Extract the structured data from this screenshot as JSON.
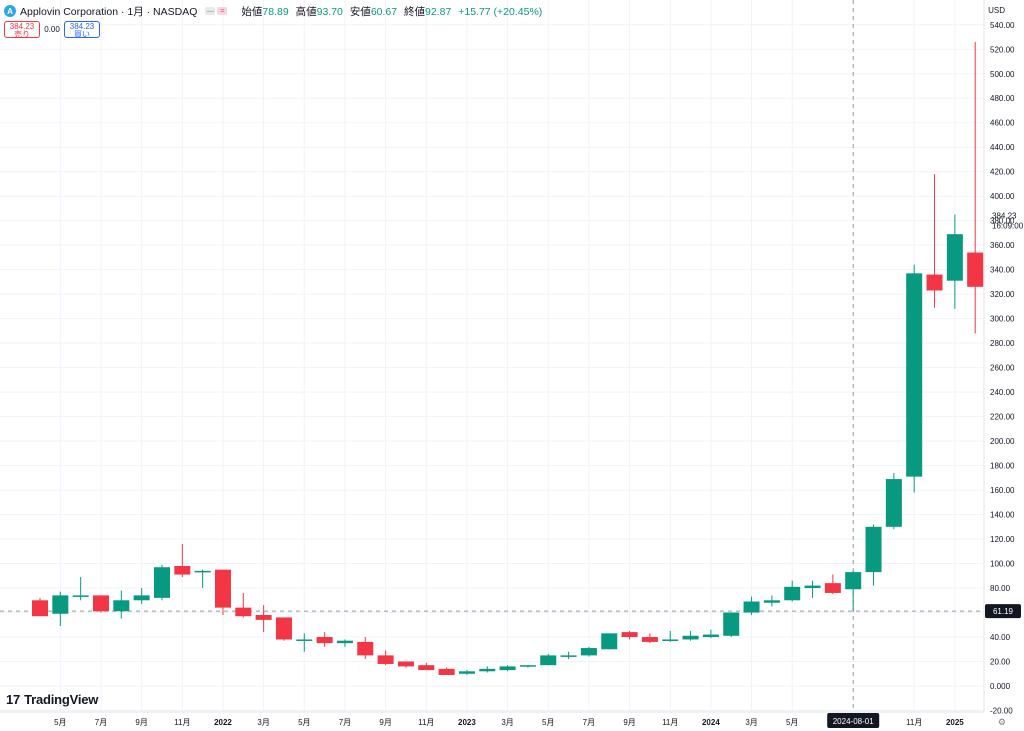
{
  "header": {
    "logo_letter": "A",
    "symbol_title": "Applovin Corporation · 1月 · NASDAQ",
    "ohlc": {
      "open_label": "始値",
      "open": "78.89",
      "high_label": "高値",
      "high": "93.70",
      "low_label": "安値",
      "low": "60.67",
      "close_label": "終値",
      "close": "92.87",
      "change": "+15.77 (+20.45%)"
    }
  },
  "trade": {
    "sell_price": "384.23",
    "sell_label": "売り",
    "spread": "0.00",
    "buy_price": "384.23",
    "buy_label": "買い"
  },
  "currency": "USD",
  "brand": "TradingView",
  "brand_mark": "17",
  "settings_icon": "gear-icon",
  "colors": {
    "up": "#089981",
    "down": "#f23645",
    "grid": "#f0f3fa",
    "axis_text": "#131722",
    "price_tag": "#131722"
  },
  "chart_data": {
    "type": "candlestick",
    "ylim": [
      -20,
      550
    ],
    "y_ticks": [
      -20,
      0,
      20,
      40,
      60,
      80,
      100,
      120,
      140,
      160,
      180,
      200,
      220,
      240,
      260,
      280,
      300,
      320,
      340,
      360,
      380,
      400,
      420,
      440,
      460,
      480,
      500,
      520,
      540
    ],
    "y_tick_labels": [
      "-20.00",
      "0.000",
      "20.00",
      "40.00",
      "60.00",
      "80.00",
      "100.00",
      "120.00",
      "140.00",
      "160.00",
      "180.00",
      "200.00",
      "220.00",
      "240.00",
      "260.00",
      "280.00",
      "300.00",
      "320.00",
      "340.00",
      "360.00",
      "380.00",
      "400.00",
      "420.00",
      "440.00",
      "460.00",
      "480.00",
      "500.00",
      "520.00",
      "540.00"
    ],
    "x_labels": [
      {
        "i": 1,
        "label": "5月"
      },
      {
        "i": 3,
        "label": "7月"
      },
      {
        "i": 5,
        "label": "9月"
      },
      {
        "i": 7,
        "label": "11月"
      },
      {
        "i": 9,
        "label": "2022",
        "bold": true
      },
      {
        "i": 11,
        "label": "3月"
      },
      {
        "i": 13,
        "label": "5月"
      },
      {
        "i": 15,
        "label": "7月"
      },
      {
        "i": 17,
        "label": "9月"
      },
      {
        "i": 19,
        "label": "11月"
      },
      {
        "i": 21,
        "label": "2023",
        "bold": true
      },
      {
        "i": 23,
        "label": "3月"
      },
      {
        "i": 25,
        "label": "5月"
      },
      {
        "i": 27,
        "label": "7月"
      },
      {
        "i": 29,
        "label": "9月"
      },
      {
        "i": 31,
        "label": "11月"
      },
      {
        "i": 33,
        "label": "2024",
        "bold": true
      },
      {
        "i": 35,
        "label": "3月"
      },
      {
        "i": 37,
        "label": "5月"
      },
      {
        "i": 43,
        "label": "11月"
      },
      {
        "i": 45,
        "label": "2025",
        "bold": true
      }
    ],
    "crosshair": {
      "i": 40,
      "date_label": "2024-08-01",
      "price": 61.19,
      "price_label": "61.19"
    },
    "last_price": {
      "value": 384.23,
      "label": "384.23",
      "countdown": "16:09:00"
    },
    "candles": [
      {
        "o": 70,
        "h": 72,
        "l": 57,
        "c": 57
      },
      {
        "o": 59,
        "h": 77,
        "l": 49,
        "c": 74
      },
      {
        "o": 74,
        "h": 89,
        "l": 70,
        "c": 74
      },
      {
        "o": 74,
        "h": 74,
        "l": 60,
        "c": 61
      },
      {
        "o": 61,
        "h": 78,
        "l": 55,
        "c": 70
      },
      {
        "o": 70,
        "h": 80,
        "l": 67,
        "c": 74
      },
      {
        "o": 72,
        "h": 99,
        "l": 70,
        "c": 97
      },
      {
        "o": 98,
        "h": 116,
        "l": 89,
        "c": 91
      },
      {
        "o": 94,
        "h": 95,
        "l": 80,
        "c": 94
      },
      {
        "o": 95,
        "h": 95,
        "l": 58,
        "c": 64
      },
      {
        "o": 64,
        "h": 76,
        "l": 56,
        "c": 57
      },
      {
        "o": 58,
        "h": 66,
        "l": 44,
        "c": 54
      },
      {
        "o": 56,
        "h": 56,
        "l": 37,
        "c": 38
      },
      {
        "o": 38,
        "h": 43,
        "l": 28,
        "c": 38
      },
      {
        "o": 40,
        "h": 44,
        "l": 32,
        "c": 35
      },
      {
        "o": 35,
        "h": 38,
        "l": 32,
        "c": 37
      },
      {
        "o": 36,
        "h": 40,
        "l": 22,
        "c": 25
      },
      {
        "o": 25,
        "h": 29,
        "l": 17,
        "c": 18
      },
      {
        "o": 20,
        "h": 20,
        "l": 15,
        "c": 16
      },
      {
        "o": 17,
        "h": 19,
        "l": 13,
        "c": 13
      },
      {
        "o": 14,
        "h": 15,
        "l": 9,
        "c": 9
      },
      {
        "o": 10,
        "h": 13,
        "l": 9,
        "c": 12
      },
      {
        "o": 12,
        "h": 16,
        "l": 11,
        "c": 14
      },
      {
        "o": 13,
        "h": 17,
        "l": 12,
        "c": 16
      },
      {
        "o": 16,
        "h": 17,
        "l": 15,
        "c": 17
      },
      {
        "o": 17,
        "h": 26,
        "l": 17,
        "c": 25
      },
      {
        "o": 24,
        "h": 28,
        "l": 22,
        "c": 25
      },
      {
        "o": 25,
        "h": 32,
        "l": 24,
        "c": 31
      },
      {
        "o": 30,
        "h": 43,
        "l": 30,
        "c": 43
      },
      {
        "o": 44,
        "h": 45,
        "l": 38,
        "c": 40
      },
      {
        "o": 40,
        "h": 43,
        "l": 35,
        "c": 36
      },
      {
        "o": 37,
        "h": 45,
        "l": 36,
        "c": 38
      },
      {
        "o": 38,
        "h": 45,
        "l": 37,
        "c": 41
      },
      {
        "o": 40,
        "h": 46,
        "l": 39,
        "c": 42
      },
      {
        "o": 41,
        "h": 60,
        "l": 40,
        "c": 60
      },
      {
        "o": 60,
        "h": 73,
        "l": 58,
        "c": 69
      },
      {
        "o": 68,
        "h": 74,
        "l": 65,
        "c": 70
      },
      {
        "o": 70,
        "h": 86,
        "l": 69,
        "c": 81
      },
      {
        "o": 80,
        "h": 86,
        "l": 72,
        "c": 82
      },
      {
        "o": 84,
        "h": 91,
        "l": 75,
        "c": 76
      },
      {
        "o": 79,
        "h": 94,
        "l": 61,
        "c": 93
      },
      {
        "o": 93,
        "h": 132,
        "l": 82,
        "c": 130
      },
      {
        "o": 130,
        "h": 174,
        "l": 128,
        "c": 169
      },
      {
        "o": 171,
        "h": 344,
        "l": 158,
        "c": 337
      },
      {
        "o": 336,
        "h": 418,
        "l": 309,
        "c": 323
      },
      {
        "o": 331,
        "h": 385,
        "l": 308,
        "c": 369
      },
      {
        "o": 354,
        "h": 526,
        "l": 288,
        "c": 326
      }
    ]
  }
}
